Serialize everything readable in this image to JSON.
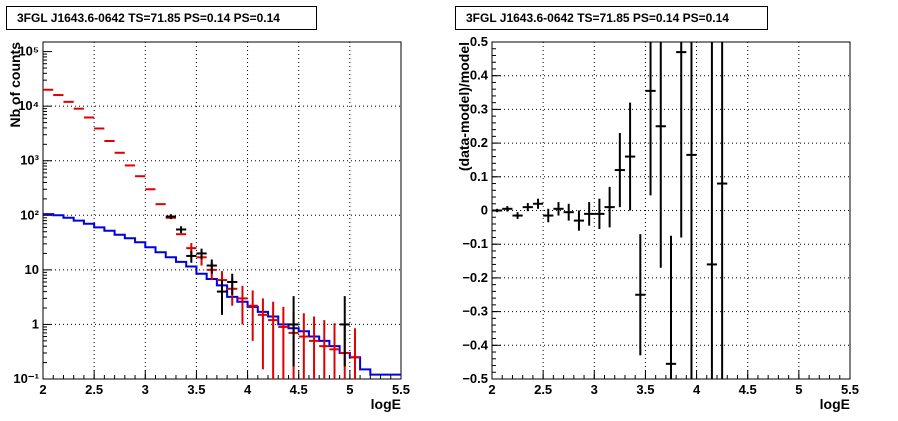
{
  "chart_data": [
    {
      "type": "histogram",
      "title": "3FGL J1643.6-0642 TS=71.85 PS=0.14 PS=0.14",
      "xlabel": "logE",
      "ylabel": "Nb of counts",
      "xlim": [
        2,
        5.5
      ],
      "ylim": [
        0.1,
        150000
      ],
      "yscale": "log",
      "grid": true,
      "x_ticks": [
        "2",
        "2.5",
        "3",
        "3.5",
        "4",
        "4.5",
        "5",
        "5.5"
      ],
      "y_ticks": [
        "10⁻¹",
        "1",
        "10",
        "10²",
        "10³",
        "10⁴",
        "10⁵"
      ],
      "colors": {
        "data": "#000000",
        "model_total": "#e00000",
        "source_model": "#0000e0"
      },
      "bin_edges": [
        2.0,
        2.1,
        2.2,
        2.3,
        2.4,
        2.5,
        2.6,
        2.7,
        2.8,
        2.9,
        3.0,
        3.1,
        3.2,
        3.3,
        3.4,
        3.5,
        3.6,
        3.7,
        3.8,
        3.9,
        4.0,
        4.1,
        4.2,
        4.3,
        4.4,
        4.5,
        4.6,
        4.7,
        4.8,
        4.9,
        5.0,
        5.1,
        5.2,
        5.3,
        5.4,
        5.5
      ],
      "series": [
        {
          "style": "step",
          "color": "#0000e0",
          "values": [
            105,
            100,
            90,
            80,
            70,
            60,
            52,
            44,
            38,
            32,
            26,
            21,
            17,
            14,
            11.5,
            8.5,
            6.8,
            5.2,
            3.2,
            2.6,
            2.1,
            1.7,
            1.4,
            1.0,
            0.85,
            0.75,
            0.6,
            0.5,
            0.4,
            0.3,
            0.25,
            0.15,
            0.12,
            0.12,
            0.12
          ]
        },
        {
          "style": "points",
          "color": "#e00000",
          "x": [
            2.05,
            2.15,
            2.25,
            2.35,
            2.45,
            2.55,
            2.65,
            2.75,
            2.85,
            2.95,
            3.05,
            3.15,
            3.25,
            3.35,
            3.45,
            3.55,
            3.65,
            3.75,
            3.85,
            3.95,
            4.05,
            4.15,
            4.25,
            4.35,
            4.45,
            4.55,
            4.65,
            4.75,
            4.85,
            4.95,
            5.05
          ],
          "y": [
            20000,
            16000,
            12000,
            9000,
            6200,
            3900,
            2300,
            1400,
            820,
            520,
            300,
            160,
            90,
            45,
            25,
            17,
            10,
            6.5,
            4.5,
            3.0,
            2.2,
            1.5,
            1.2,
            0.9,
            0.7,
            0.6,
            0.5,
            0.4,
            0.35,
            0.3,
            0.25
          ],
          "yerr_low": [
            0,
            0,
            0,
            0,
            0,
            0,
            0,
            0,
            0,
            0,
            0,
            0,
            0,
            0,
            6,
            5,
            3.5,
            3,
            2.3,
            2.0,
            1.7,
            1.35,
            1.1,
            0.82,
            0.65,
            0.55,
            0.47,
            0.38,
            0.33,
            0.28,
            0.23
          ],
          "yerr_high": [
            0,
            0,
            0,
            0,
            0,
            0,
            0,
            0,
            0,
            0,
            0,
            0,
            0,
            0,
            6,
            5,
            3.5,
            3,
            2.5,
            2.1,
            2.0,
            1.5,
            1.4,
            1.2,
            1.0,
            1.0,
            0.9,
            0.8,
            0.7,
            0.65,
            0.6
          ]
        },
        {
          "style": "points",
          "color": "#000000",
          "x": [
            3.25,
            3.35,
            3.45,
            3.55,
            3.65,
            3.75,
            3.85,
            4.45,
            4.95
          ],
          "y": [
            95,
            55,
            18,
            20,
            12,
            4,
            6,
            1,
            1
          ],
          "yerr_low": [
            10,
            8,
            4.5,
            4.5,
            3.5,
            2.5,
            2.5,
            0.83,
            0.83
          ],
          "yerr_high": [
            10,
            8,
            4.5,
            4.5,
            3.5,
            2.5,
            2.5,
            2.3,
            2.3
          ]
        }
      ]
    },
    {
      "type": "scatter",
      "title": "3FGL J1643.6-0642 TS=71.85 PS=0.14 PS=0.14",
      "xlabel": "logE",
      "ylabel": "(data-model)/model",
      "xlim": [
        2,
        5.5
      ],
      "ylim": [
        -0.5,
        0.5
      ],
      "grid": true,
      "x_ticks": [
        "2",
        "2.5",
        "3",
        "3.5",
        "4",
        "4.5",
        "5",
        "5.5"
      ],
      "y_ticks": [
        "−0.5",
        "−0.4",
        "−0.3",
        "−0.2",
        "−0.1",
        "0",
        "0.1",
        "0.2",
        "0.3",
        "0.4",
        "0.5"
      ],
      "series": [
        {
          "color": "#000000",
          "x": [
            2.05,
            2.15,
            2.25,
            2.35,
            2.45,
            2.55,
            2.65,
            2.75,
            2.85,
            2.95,
            3.05,
            3.15,
            3.25,
            3.35,
            3.45,
            3.55,
            3.65,
            3.75,
            3.85,
            3.95,
            4.15,
            4.25
          ],
          "y": [
            0.0,
            0.005,
            -0.015,
            0.01,
            0.02,
            -0.015,
            0.005,
            -0.005,
            -0.03,
            -0.01,
            -0.01,
            0.01,
            0.12,
            0.16,
            -0.25,
            0.355,
            0.25,
            -0.455,
            0.47,
            0.165,
            -0.16,
            0.08
          ],
          "yerr": [
            0.005,
            0.008,
            0.01,
            0.012,
            0.015,
            0.02,
            0.02,
            0.025,
            0.03,
            0.035,
            0.045,
            0.06,
            0.11,
            0.16,
            0.18,
            0.31,
            0.42,
            0.38,
            0.55,
            0.7,
            1.2,
            1.4
          ]
        }
      ]
    }
  ]
}
